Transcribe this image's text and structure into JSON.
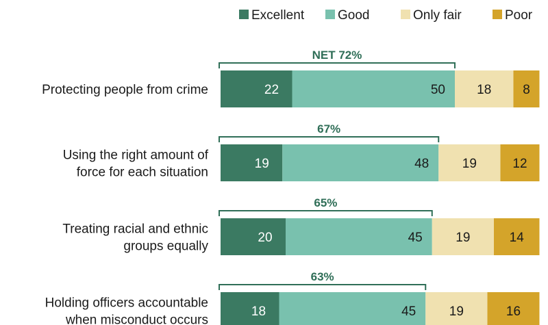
{
  "chart_data": {
    "type": "bar",
    "orientation": "horizontal",
    "stacked": true,
    "legend_position": "top-right",
    "grid": false,
    "categories": [
      [
        "Protecting people from crime"
      ],
      [
        "Using the right amount of",
        "force for each situation"
      ],
      [
        "Treating racial and ethnic",
        "groups equally"
      ],
      [
        "Holding officers accountable",
        "when misconduct occurs"
      ]
    ],
    "series": [
      {
        "name": "Excellent",
        "color": "#3b7a62",
        "text_color": "#ffffff",
        "values": [
          22,
          19,
          20,
          18
        ]
      },
      {
        "name": "Good",
        "color": "#79c1ae",
        "text_color": "#1a1a1a",
        "values": [
          50,
          48,
          45,
          45
        ]
      },
      {
        "name": "Only fair",
        "color": "#f0e1b0",
        "text_color": "#1a1a1a",
        "values": [
          18,
          19,
          19,
          19
        ]
      },
      {
        "name": "Poor",
        "color": "#d4a42a",
        "text_color": "#1a1a1a",
        "values": [
          8,
          12,
          14,
          16
        ]
      }
    ],
    "net": {
      "color": "#2f6e57",
      "labels": [
        "NET 72%",
        "67%",
        "65%",
        "63%"
      ]
    }
  }
}
